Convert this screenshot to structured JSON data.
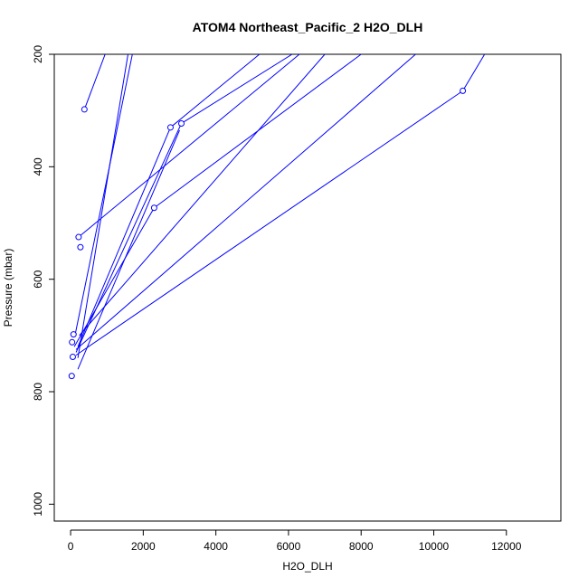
{
  "chart_data": {
    "type": "line",
    "title": "ATOM4 Northeast_Pacific_2 H2O_DLH",
    "xlabel": "H2O_DLH",
    "ylabel": "Pressure (mbar)",
    "xlim": [
      -450,
      13500
    ],
    "ylim": [
      1030,
      200
    ],
    "y_reversed": true,
    "x_ticks": [
      0,
      2000,
      4000,
      6000,
      8000,
      10000,
      12000
    ],
    "y_ticks": [
      200,
      400,
      600,
      800,
      1000
    ],
    "x_tick_labels": [
      "0",
      "2000",
      "4000",
      "6000",
      "8000",
      "10000",
      "12000"
    ],
    "y_tick_labels": [
      "200",
      "400",
      "600",
      "800",
      "1000"
    ],
    "color": "#0000ff",
    "grid": false,
    "segments": [
      {
        "x": [
          380,
          950
        ],
        "y": [
          298,
          200
        ]
      },
      {
        "x": [
          120,
          1700
        ],
        "y": [
          700,
          200
        ]
      },
      {
        "x": [
          200,
          1580
        ],
        "y": [
          740,
          200
        ]
      },
      {
        "x": [
          200,
          2750
        ],
        "y": [
          720,
          330
        ]
      },
      {
        "x": [
          2750,
          5200
        ],
        "y": [
          330,
          200
        ]
      },
      {
        "x": [
          150,
          3050
        ],
        "y": [
          730,
          323
        ]
      },
      {
        "x": [
          3050,
          6100
        ],
        "y": [
          323,
          200
        ]
      },
      {
        "x": [
          200,
          3000
        ],
        "y": [
          760,
          335
        ]
      },
      {
        "x": [
          240,
          7000
        ],
        "y": [
          700,
          200
        ]
      },
      {
        "x": [
          100,
          2300
        ],
        "y": [
          720,
          473
        ]
      },
      {
        "x": [
          2300,
          8000
        ],
        "y": [
          473,
          200
        ]
      },
      {
        "x": [
          220,
          6300
        ],
        "y": [
          525,
          200
        ]
      },
      {
        "x": [
          150,
          9500
        ],
        "y": [
          725,
          200
        ]
      },
      {
        "x": [
          150,
          10800
        ],
        "y": [
          735,
          265
        ]
      },
      {
        "x": [
          10800,
          11400
        ],
        "y": [
          265,
          200
        ]
      }
    ],
    "points": [
      {
        "x": 380,
        "y": 298
      },
      {
        "x": 2750,
        "y": 330
      },
      {
        "x": 3050,
        "y": 323
      },
      {
        "x": 2300,
        "y": 473
      },
      {
        "x": 10800,
        "y": 265
      },
      {
        "x": 220,
        "y": 525
      },
      {
        "x": 270,
        "y": 543
      },
      {
        "x": 80,
        "y": 698
      },
      {
        "x": 40,
        "y": 712
      },
      {
        "x": 60,
        "y": 738
      },
      {
        "x": 30,
        "y": 772
      }
    ]
  }
}
